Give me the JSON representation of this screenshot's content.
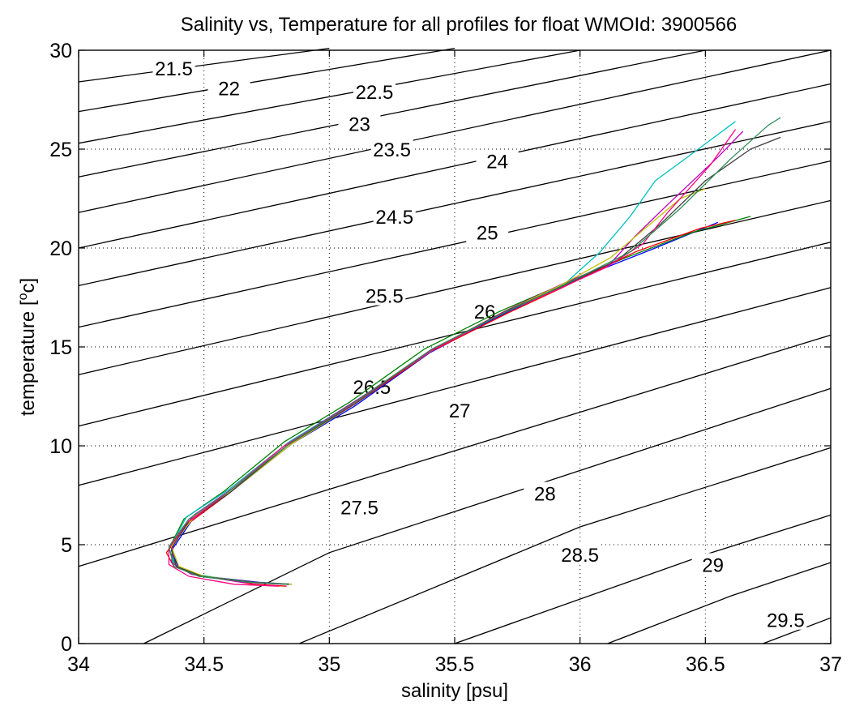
{
  "chart_data": {
    "type": "line",
    "title": "Salinity vs, Temperature for all profiles for float WMOId: 3900566",
    "xlabel": "salinity [psu]",
    "ylabel_main": "temperature [",
    "ylabel_sup": "o",
    "ylabel_end": "c]",
    "xlim": [
      34,
      37
    ],
    "ylim": [
      0,
      30
    ],
    "x_ticks": [
      34,
      34.5,
      35,
      35.5,
      36,
      36.5,
      37
    ],
    "x_tick_labels": [
      "34",
      "34.5",
      "35",
      "35.5",
      "36",
      "36.5",
      "37"
    ],
    "y_ticks": [
      0,
      5,
      10,
      15,
      20,
      25,
      30
    ],
    "y_tick_labels": [
      "0",
      "5",
      "10",
      "15",
      "20",
      "25",
      "30"
    ],
    "grid": true,
    "legend": "none",
    "density_contours": [
      {
        "label": "21.5",
        "points": [
          [
            34.0,
            28.4
          ],
          [
            35.0,
            30.1
          ]
        ],
        "label_at": [
          34.38,
          29.1
        ]
      },
      {
        "label": "22",
        "points": [
          [
            34.0,
            26.9
          ],
          [
            35.5,
            30.1
          ]
        ],
        "label_at": [
          34.6,
          28.1
        ]
      },
      {
        "label": "22.5",
        "points": [
          [
            34.0,
            25.3
          ],
          [
            36.0,
            30.0
          ]
        ],
        "label_at": [
          35.18,
          27.9
        ]
      },
      {
        "label": "23",
        "points": [
          [
            34.0,
            23.6
          ],
          [
            36.5,
            30.0
          ]
        ],
        "label_at": [
          35.12,
          26.3
        ]
      },
      {
        "label": "23.5",
        "points": [
          [
            34.0,
            21.8
          ],
          [
            37.0,
            30.0
          ]
        ],
        "label_at": [
          35.25,
          25.0
        ]
      },
      {
        "label": "24",
        "points": [
          [
            34.0,
            20.0
          ],
          [
            37.0,
            28.3
          ]
        ],
        "label_at": [
          35.67,
          24.4
        ]
      },
      {
        "label": "24.5",
        "points": [
          [
            34.0,
            18.1
          ],
          [
            37.0,
            26.4
          ]
        ],
        "label_at": [
          35.26,
          21.6
        ]
      },
      {
        "label": "25",
        "points": [
          [
            34.0,
            16.0
          ],
          [
            37.0,
            24.4
          ]
        ],
        "label_at": [
          35.63,
          20.8
        ]
      },
      {
        "label": "25.5",
        "points": [
          [
            34.0,
            13.6
          ],
          [
            37.0,
            22.4
          ]
        ],
        "label_at": [
          35.22,
          17.6
        ]
      },
      {
        "label": "26",
        "points": [
          [
            34.0,
            11.0
          ],
          [
            37.0,
            20.3
          ]
        ],
        "label_at": [
          35.62,
          16.8
        ]
      },
      {
        "label": "26.5",
        "points": [
          [
            34.0,
            8.0
          ],
          [
            37.0,
            18.0
          ]
        ],
        "label_at": [
          35.17,
          13.0
        ]
      },
      {
        "label": "27",
        "points": [
          [
            34.0,
            3.9
          ],
          [
            37.0,
            15.6
          ]
        ],
        "label_at": [
          35.52,
          11.8
        ]
      },
      {
        "label": "27.5",
        "points": [
          [
            34.26,
            0.0
          ],
          [
            35.0,
            4.6
          ],
          [
            37.0,
            12.9
          ]
        ],
        "label_at": [
          35.12,
          6.9
        ]
      },
      {
        "label": "28",
        "points": [
          [
            34.88,
            0.0
          ],
          [
            36.0,
            5.9
          ],
          [
            37.0,
            9.9
          ]
        ],
        "label_at": [
          35.86,
          7.6
        ]
      },
      {
        "label": "28.5",
        "points": [
          [
            35.5,
            0.0
          ],
          [
            36.5,
            4.5
          ],
          [
            37.0,
            6.5
          ]
        ],
        "label_at": [
          36.0,
          4.5
        ]
      },
      {
        "label": "29",
        "points": [
          [
            36.11,
            0.0
          ],
          [
            36.6,
            2.4
          ],
          [
            37.0,
            4.1
          ]
        ],
        "label_at": [
          36.53,
          4.0
        ]
      },
      {
        "label": "29.5",
        "points": [
          [
            36.73,
            0.0
          ],
          [
            37.0,
            1.3
          ]
        ],
        "label_at": [
          36.82,
          1.2
        ]
      }
    ],
    "series": [
      {
        "color": "#0000ff",
        "points": [
          [
            34.85,
            3.0
          ],
          [
            34.72,
            3.1
          ],
          [
            34.5,
            3.4
          ],
          [
            34.4,
            3.8
          ],
          [
            34.37,
            4.7
          ],
          [
            34.45,
            6.2
          ],
          [
            34.6,
            7.6
          ],
          [
            34.85,
            10.1
          ],
          [
            35.1,
            12.0
          ],
          [
            35.4,
            14.7
          ],
          [
            35.7,
            16.7
          ],
          [
            35.92,
            18.0
          ],
          [
            36.1,
            19.0
          ],
          [
            36.3,
            20.0
          ],
          [
            36.55,
            21.3
          ]
        ]
      },
      {
        "color": "#008000",
        "points": [
          [
            34.84,
            3.0
          ],
          [
            34.68,
            3.1
          ],
          [
            34.48,
            3.4
          ],
          [
            34.39,
            3.9
          ],
          [
            34.36,
            4.8
          ],
          [
            34.42,
            6.3
          ],
          [
            34.58,
            7.7
          ],
          [
            34.82,
            10.2
          ],
          [
            35.08,
            12.2
          ],
          [
            35.38,
            14.9
          ],
          [
            35.68,
            16.8
          ],
          [
            35.9,
            18.0
          ],
          [
            36.18,
            19.5
          ],
          [
            36.45,
            20.8
          ],
          [
            36.68,
            21.6
          ]
        ]
      },
      {
        "color": "#ff0000",
        "points": [
          [
            34.83,
            2.9
          ],
          [
            34.7,
            3.0
          ],
          [
            34.5,
            3.4
          ],
          [
            34.38,
            3.9
          ],
          [
            34.35,
            4.6
          ],
          [
            34.44,
            6.1
          ],
          [
            34.59,
            7.5
          ],
          [
            34.83,
            10.0
          ],
          [
            35.1,
            12.1
          ],
          [
            35.41,
            14.8
          ],
          [
            35.71,
            16.7
          ],
          [
            35.93,
            18.0
          ],
          [
            36.22,
            19.8
          ],
          [
            36.48,
            21.0
          ],
          [
            36.62,
            21.4
          ]
        ]
      },
      {
        "color": "#00bfbf",
        "points": [
          [
            34.84,
            3.0
          ],
          [
            34.66,
            3.1
          ],
          [
            34.47,
            3.5
          ],
          [
            34.38,
            4.0
          ],
          [
            34.37,
            5.0
          ],
          [
            34.43,
            6.4
          ],
          [
            34.6,
            7.8
          ],
          [
            34.84,
            10.2
          ],
          [
            35.11,
            12.3
          ],
          [
            35.42,
            14.9
          ],
          [
            35.72,
            16.9
          ],
          [
            35.94,
            18.2
          ],
          [
            36.08,
            19.8
          ],
          [
            36.2,
            21.6
          ],
          [
            36.3,
            23.4
          ],
          [
            36.45,
            24.8
          ],
          [
            36.62,
            26.4
          ]
        ]
      },
      {
        "color": "#bf00bf",
        "points": [
          [
            34.82,
            3.0
          ],
          [
            34.65,
            3.1
          ],
          [
            34.45,
            3.5
          ],
          [
            34.37,
            4.1
          ],
          [
            34.38,
            5.2
          ],
          [
            34.46,
            6.5
          ],
          [
            34.62,
            7.9
          ],
          [
            34.86,
            10.3
          ],
          [
            35.12,
            12.4
          ],
          [
            35.43,
            15.0
          ],
          [
            35.73,
            17.0
          ],
          [
            35.95,
            18.3
          ],
          [
            36.12,
            19.2
          ],
          [
            36.22,
            20.6
          ],
          [
            36.35,
            22.2
          ],
          [
            36.55,
            24.6
          ],
          [
            36.65,
            25.9
          ]
        ]
      },
      {
        "color": "#bfbf00",
        "points": [
          [
            34.85,
            3.0
          ],
          [
            34.7,
            3.1
          ],
          [
            34.5,
            3.4
          ],
          [
            34.4,
            3.9
          ],
          [
            34.37,
            4.9
          ],
          [
            34.46,
            6.4
          ],
          [
            34.62,
            7.8
          ],
          [
            34.85,
            10.1
          ],
          [
            35.1,
            12.1
          ],
          [
            35.4,
            14.8
          ],
          [
            35.7,
            16.8
          ],
          [
            35.92,
            18.1
          ],
          [
            36.12,
            19.5
          ],
          [
            36.26,
            21.0
          ],
          [
            36.4,
            22.5
          ],
          [
            36.5,
            23.0
          ]
        ]
      },
      {
        "color": "#404040",
        "points": [
          [
            34.84,
            3.0
          ],
          [
            34.7,
            3.1
          ],
          [
            34.49,
            3.4
          ],
          [
            34.39,
            3.9
          ],
          [
            34.37,
            4.8
          ],
          [
            34.44,
            6.2
          ],
          [
            34.6,
            7.6
          ],
          [
            34.84,
            10.1
          ],
          [
            35.1,
            12.1
          ],
          [
            35.4,
            14.8
          ],
          [
            35.7,
            16.8
          ],
          [
            35.92,
            18.0
          ],
          [
            36.15,
            19.4
          ],
          [
            36.32,
            21.2
          ],
          [
            36.5,
            23.4
          ],
          [
            36.68,
            25.0
          ],
          [
            36.8,
            25.6
          ]
        ]
      },
      {
        "color": "#ff0080",
        "points": [
          [
            34.8,
            2.9
          ],
          [
            34.62,
            3.0
          ],
          [
            34.44,
            3.4
          ],
          [
            34.36,
            4.0
          ],
          [
            34.36,
            4.8
          ],
          [
            34.43,
            6.1
          ],
          [
            34.58,
            7.5
          ],
          [
            34.82,
            10.0
          ],
          [
            35.08,
            12.0
          ],
          [
            35.39,
            14.7
          ],
          [
            35.69,
            16.7
          ],
          [
            35.91,
            17.9
          ],
          [
            36.1,
            19.0
          ],
          [
            36.25,
            20.2
          ],
          [
            36.35,
            21.8
          ],
          [
            36.52,
            24.2
          ],
          [
            36.62,
            26.0
          ]
        ]
      },
      {
        "color": "#2e8b57",
        "points": [
          [
            34.83,
            3.0
          ],
          [
            34.68,
            3.1
          ],
          [
            34.48,
            3.4
          ],
          [
            34.38,
            3.9
          ],
          [
            34.36,
            4.9
          ],
          [
            34.44,
            6.3
          ],
          [
            34.6,
            7.7
          ],
          [
            34.84,
            10.1
          ],
          [
            35.1,
            12.2
          ],
          [
            35.41,
            14.9
          ],
          [
            35.71,
            16.8
          ],
          [
            35.93,
            18.1
          ],
          [
            36.2,
            19.8
          ],
          [
            36.4,
            22.0
          ],
          [
            36.6,
            24.5
          ],
          [
            36.75,
            26.2
          ],
          [
            36.8,
            26.6
          ]
        ]
      }
    ]
  }
}
